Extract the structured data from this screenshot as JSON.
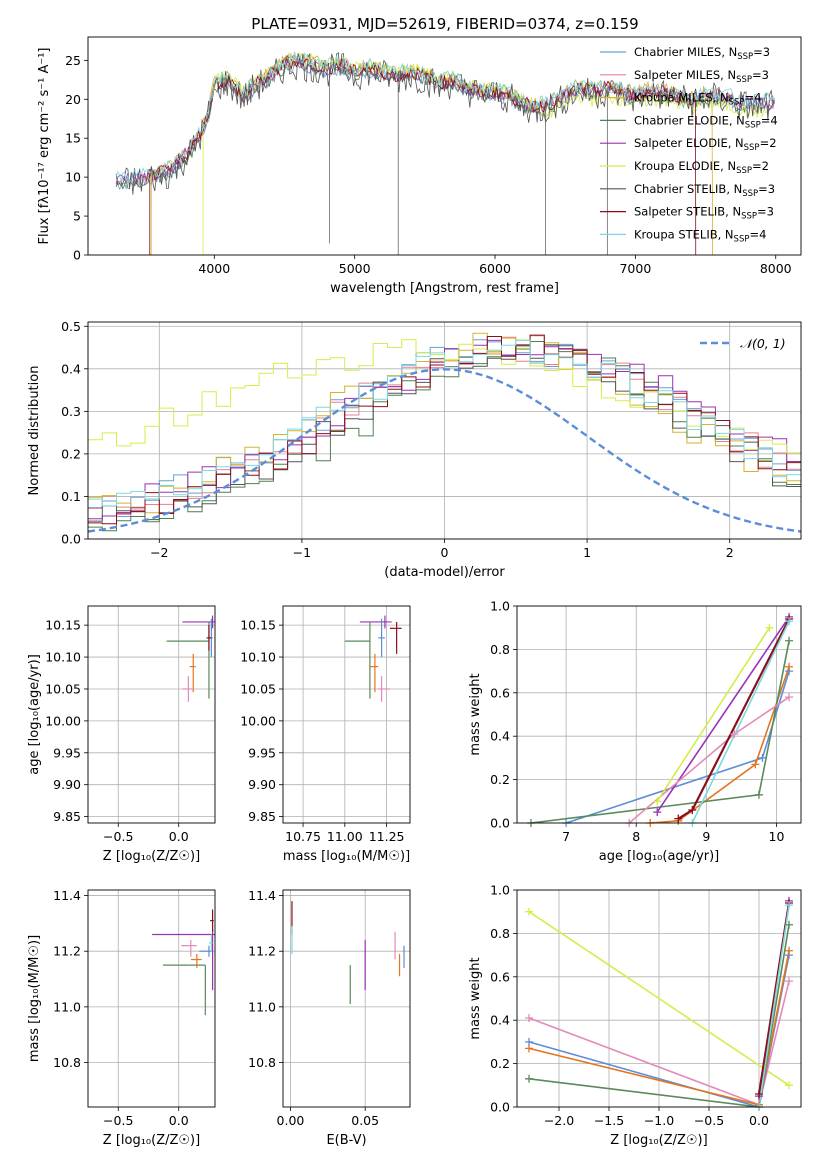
{
  "figure_title": "PLATE=0931, MJD=52619, FIBERID=0374, z=0.159",
  "colors": {
    "chabrier_miles": "#6a9fd4",
    "salpeter_miles": "#e58090",
    "kroupa_miles": "#d5b32b",
    "chabrier_elodie": "#4f7f4f",
    "salpeter_elodie": "#9b31b5",
    "kroupa_elodie": "#d7ec4a",
    "chabrier_stelib": "#555555",
    "salpeter_stelib": "#8b0f1a",
    "kroupa_stelib": "#7ed8e0",
    "mw_blue": "#5b8dd9",
    "mw_orange": "#e6741c",
    "mw_green": "#5a8a5a",
    "mw_purple": "#9b31b5",
    "mw_pink": "#e58ab8",
    "mw_yellow": "#d7ec4a",
    "mw_red": "#8b0f1a",
    "mw_cyan": "#7ed8e0",
    "gaussian": "#5b8dd9",
    "grid": "#b0b0b0"
  },
  "chart_data": [
    {
      "id": "spectrum",
      "type": "line",
      "xlabel": "wavelength [Angstrom, rest frame]",
      "ylabel": "Flux [f$_\\lambda$10$^{-17}$ erg cm$^{-2}$ s$^{-1}$ A$^{-1}$]",
      "ylabel_display": "Flux [fλ10⁻¹⁷ erg cm⁻² s⁻¹ A⁻¹]",
      "xlim": [
        3100,
        8180
      ],
      "ylim": [
        0,
        28
      ],
      "xticks": [
        4000,
        5000,
        6000,
        7000,
        8000
      ],
      "yticks": [
        0,
        5,
        10,
        15,
        20,
        25
      ],
      "grid": false,
      "legend_position": "top-right",
      "legend": [
        {
          "label": "Chabrier MILES, N",
          "sub": "SSP",
          "tail": "=3",
          "color_key": "chabrier_miles"
        },
        {
          "label": "Salpeter MILES, N",
          "sub": "SSP",
          "tail": "=3",
          "color_key": "salpeter_miles"
        },
        {
          "label": "Kroupa MILES, N",
          "sub": "SSP",
          "tail": "=4",
          "color_key": "kroupa_miles"
        },
        {
          "label": "Chabrier ELODIE, N",
          "sub": "SSP",
          "tail": "=4",
          "color_key": "chabrier_elodie"
        },
        {
          "label": "Salpeter ELODIE, N",
          "sub": "SSP",
          "tail": "=2",
          "color_key": "salpeter_elodie"
        },
        {
          "label": "Kroupa ELODIE, N",
          "sub": "SSP",
          "tail": "=2",
          "color_key": "kroupa_elodie"
        },
        {
          "label": "Chabrier STELIB, N",
          "sub": "SSP",
          "tail": "=3",
          "color_key": "chabrier_stelib"
        },
        {
          "label": "Salpeter STELIB, N",
          "sub": "SSP",
          "tail": "=3",
          "color_key": "salpeter_stelib"
        },
        {
          "label": "Kroupa STELIB, N",
          "sub": "SSP",
          "tail": "=4",
          "color_key": "kroupa_stelib"
        }
      ],
      "envelope": {
        "x": [
          3300,
          3500,
          3700,
          3850,
          3950,
          4000,
          4100,
          4200,
          4300,
          4400,
          4500,
          4600,
          4700,
          4800,
          4900,
          5000,
          5100,
          5200,
          5300,
          5400,
          5500,
          5600,
          5700,
          5800,
          5900,
          6000,
          6100,
          6200,
          6300,
          6400,
          6500,
          6600,
          6700,
          6800,
          6900,
          7000,
          7100,
          7200,
          7300,
          7400,
          7500,
          7600,
          7700,
          7800,
          7900,
          8000
        ],
        "y": [
          9.5,
          10.0,
          11.0,
          14.0,
          17.5,
          22.0,
          22.5,
          20.5,
          22.0,
          23.0,
          24.5,
          25.0,
          24.5,
          24.0,
          24.5,
          23.5,
          24.0,
          23.5,
          23.0,
          23.5,
          23.0,
          22.0,
          22.5,
          21.5,
          21.0,
          21.0,
          20.5,
          19.5,
          19.0,
          19.5,
          20.5,
          21.5,
          21.0,
          21.5,
          21.0,
          20.5,
          21.0,
          21.0,
          20.5,
          20.0,
          20.5,
          20.5,
          20.0,
          19.5,
          19.5,
          19.5
        ]
      }
    },
    {
      "id": "residuals",
      "type": "area",
      "xlabel": "(data-model)/error",
      "ylabel": "Normed distribution",
      "xlim": [
        -2.5,
        2.5
      ],
      "ylim": [
        0,
        0.51
      ],
      "xticks": [
        -2,
        -1,
        0,
        1,
        2
      ],
      "yticks": [
        0.0,
        0.1,
        0.2,
        0.3,
        0.4,
        0.5
      ],
      "grid": true,
      "legend_position": "top-right",
      "legend": [
        {
          "label": "𝒩(0, 1)",
          "color_key": "gaussian"
        }
      ],
      "gaussian": {
        "mu": 0,
        "sigma": 1
      }
    },
    {
      "id": "age_vs_z",
      "type": "scatter",
      "xlabel": "Z [log₁₀(Z/Z☉)]",
      "ylabel": "age  [log₁₀(age/yr)]",
      "xlim": [
        -0.75,
        0.3
      ],
      "ylim": [
        9.84,
        10.18
      ],
      "xticks": [
        -0.5,
        0.0
      ],
      "yticks": [
        9.85,
        9.9,
        9.95,
        10.0,
        10.05,
        10.1,
        10.15
      ],
      "grid": true,
      "points": [
        {
          "x": 0.28,
          "y": 10.155,
          "xerr": [
            0.25,
            0.02
          ],
          "yerr": [
            0.01,
            0.01
          ],
          "color_key": "mw_purple"
        },
        {
          "x": 0.25,
          "y": 10.125,
          "xerr": [
            0.35,
            0.0
          ],
          "yerr": [
            0.09,
            0.03
          ],
          "color_key": "mw_green"
        },
        {
          "x": 0.27,
          "y": 10.13,
          "xerr": [
            0.02,
            0.01
          ],
          "yerr": [
            0.03,
            0.03
          ],
          "color_key": "mw_blue"
        },
        {
          "x": 0.12,
          "y": 10.085,
          "xerr": [
            0.03,
            0.02
          ],
          "yerr": [
            0.04,
            0.02
          ],
          "color_key": "mw_orange"
        },
        {
          "x": 0.08,
          "y": 10.05,
          "xerr": [
            0.05,
            0.05
          ],
          "yerr": [
            0.02,
            0.02
          ],
          "color_key": "mw_pink"
        },
        {
          "x": 0.25,
          "y": 10.13,
          "xerr": [
            0.02,
            0.02
          ],
          "yerr": [
            0.02,
            0.02
          ],
          "color_key": "mw_red"
        }
      ]
    },
    {
      "id": "age_vs_mass",
      "type": "scatter",
      "xlabel": "mass [log₁₀(M/M☉)]",
      "ylabel": "",
      "xlim": [
        10.63,
        11.39
      ],
      "ylim": [
        9.84,
        10.18
      ],
      "xticks": [
        10.75,
        11.0,
        11.25
      ],
      "yticks": [
        9.85,
        9.9,
        9.95,
        10.0,
        10.05,
        10.1,
        10.15
      ],
      "grid": true,
      "points": [
        {
          "x": 11.24,
          "y": 10.155,
          "xerr": [
            0.15,
            0.04
          ],
          "yerr": [
            0.01,
            0.01
          ],
          "color_key": "mw_purple"
        },
        {
          "x": 11.15,
          "y": 10.125,
          "xerr": [
            0.15,
            0.0
          ],
          "yerr": [
            0.09,
            0.03
          ],
          "color_key": "mw_green"
        },
        {
          "x": 11.22,
          "y": 10.13,
          "xerr": [
            0.02,
            0.02
          ],
          "yerr": [
            0.03,
            0.03
          ],
          "color_key": "mw_blue"
        },
        {
          "x": 11.18,
          "y": 10.085,
          "xerr": [
            0.03,
            0.02
          ],
          "yerr": [
            0.04,
            0.02
          ],
          "color_key": "mw_orange"
        },
        {
          "x": 11.22,
          "y": 10.05,
          "xerr": [
            0.02,
            0.05
          ],
          "yerr": [
            0.02,
            0.02
          ],
          "color_key": "mw_pink"
        },
        {
          "x": 11.31,
          "y": 10.145,
          "xerr": [
            0.04,
            0.03
          ],
          "yerr": [
            0.04,
            0.01
          ],
          "color_key": "mw_red"
        }
      ]
    },
    {
      "id": "mass_weight_vs_age",
      "type": "line",
      "xlabel": "age  [log₁₀(age/yr)]",
      "ylabel": "mass weight",
      "xlim": [
        6.3,
        10.35
      ],
      "ylim": [
        0,
        1
      ],
      "xticks": [
        7,
        8,
        9,
        10
      ],
      "yticks": [
        0.0,
        0.2,
        0.4,
        0.6,
        0.8,
        1.0
      ],
      "grid": true,
      "series": [
        {
          "color_key": "mw_blue",
          "x": [
            7.0,
            9.8,
            10.18
          ],
          "y": [
            0.0,
            0.3,
            0.7
          ]
        },
        {
          "color_key": "mw_orange",
          "x": [
            8.2,
            8.6,
            9.7,
            10.18
          ],
          "y": [
            0.0,
            0.01,
            0.27,
            0.72
          ]
        },
        {
          "color_key": "mw_green",
          "x": [
            6.5,
            9.75,
            10.18
          ],
          "y": [
            0.0,
            0.13,
            0.84
          ]
        },
        {
          "color_key": "mw_purple",
          "x": [
            8.3,
            10.18
          ],
          "y": [
            0.05,
            0.95
          ]
        },
        {
          "color_key": "mw_pink",
          "x": [
            7.9,
            9.4,
            10.18
          ],
          "y": [
            0.0,
            0.41,
            0.58
          ]
        },
        {
          "color_key": "mw_yellow",
          "x": [
            8.3,
            9.9
          ],
          "y": [
            0.1,
            0.9
          ]
        },
        {
          "color_key": "mw_red",
          "x": [
            8.6,
            8.8,
            10.18
          ],
          "y": [
            0.02,
            0.06,
            0.94
          ]
        },
        {
          "color_key": "mw_cyan",
          "x": [
            8.8,
            10.18
          ],
          "y": [
            0.0,
            0.93
          ]
        }
      ]
    },
    {
      "id": "mass_vs_z",
      "type": "scatter",
      "xlabel": "Z [log₁₀(Z/Z☉)]",
      "ylabel": "mass [log₁₀(M/M☉)]",
      "xlim": [
        -0.75,
        0.3
      ],
      "ylim": [
        10.64,
        11.42
      ],
      "xticks": [
        -0.5,
        0.0
      ],
      "yticks": [
        10.8,
        11.0,
        11.2,
        11.4
      ],
      "grid": true,
      "points": [
        {
          "x": 0.28,
          "y": 11.26,
          "xerr": [
            0.5,
            0.02
          ],
          "yerr": [
            0.2,
            0.02
          ],
          "color_key": "mw_purple"
        },
        {
          "x": 0.22,
          "y": 11.15,
          "xerr": [
            0.35,
            0.0
          ],
          "yerr": [
            0.18,
            0.0
          ],
          "color_key": "mw_green"
        },
        {
          "x": 0.25,
          "y": 11.2,
          "xerr": [
            0.08,
            0.02
          ],
          "yerr": [
            0.02,
            0.02
          ],
          "color_key": "mw_blue"
        },
        {
          "x": 0.15,
          "y": 11.17,
          "xerr": [
            0.05,
            0.04
          ],
          "yerr": [
            0.03,
            0.02
          ],
          "color_key": "mw_orange"
        },
        {
          "x": 0.1,
          "y": 11.22,
          "xerr": [
            0.08,
            0.05
          ],
          "yerr": [
            0.04,
            0.02
          ],
          "color_key": "mw_pink"
        },
        {
          "x": 0.28,
          "y": 11.31,
          "xerr": [
            0.02,
            0.01
          ],
          "yerr": [
            0.04,
            0.04
          ],
          "color_key": "mw_red"
        },
        {
          "x": 0.27,
          "y": 11.23,
          "xerr": [
            0.02,
            0.01
          ],
          "yerr": [
            0.03,
            0.03
          ],
          "color_key": "mw_cyan"
        }
      ]
    },
    {
      "id": "mass_vs_ebv",
      "type": "scatter",
      "xlabel": "E(B-V)",
      "ylabel": "",
      "xlim": [
        -0.005,
        0.08
      ],
      "ylim": [
        10.64,
        11.42
      ],
      "xticks": [
        0.0,
        0.05
      ],
      "yticks": [
        10.8,
        11.0,
        11.2,
        11.4
      ],
      "grid": true,
      "points": [
        {
          "x": 0.001,
          "y": 11.32,
          "xerr": [
            0,
            0
          ],
          "yerr": [
            0.06,
            0.06
          ],
          "color_key": "mw_red"
        },
        {
          "x": 0.001,
          "y": 11.24,
          "xerr": [
            0,
            0
          ],
          "yerr": [
            0.05,
            0.05
          ],
          "color_key": "mw_cyan"
        },
        {
          "x": 0.04,
          "y": 11.08,
          "xerr": [
            0,
            0
          ],
          "yerr": [
            0.07,
            0.07
          ],
          "color_key": "mw_green"
        },
        {
          "x": 0.05,
          "y": 11.15,
          "xerr": [
            0,
            0
          ],
          "yerr": [
            0.09,
            0.09
          ],
          "color_key": "mw_purple"
        },
        {
          "x": 0.07,
          "y": 11.22,
          "xerr": [
            0,
            0
          ],
          "yerr": [
            0.05,
            0.05
          ],
          "color_key": "mw_pink"
        },
        {
          "x": 0.073,
          "y": 11.15,
          "xerr": [
            0,
            0
          ],
          "yerr": [
            0.04,
            0.04
          ],
          "color_key": "mw_orange"
        },
        {
          "x": 0.076,
          "y": 11.18,
          "xerr": [
            0,
            0
          ],
          "yerr": [
            0.04,
            0.04
          ],
          "color_key": "mw_blue"
        }
      ]
    },
    {
      "id": "mass_weight_vs_z",
      "type": "line",
      "xlabel": "Z [log₁₀(Z/Z☉)]",
      "ylabel": "mass weight",
      "xlim": [
        -2.42,
        0.42
      ],
      "ylim": [
        0,
        1
      ],
      "xticks": [
        -2.0,
        -1.5,
        -1.0,
        -0.5,
        0.0
      ],
      "yticks": [
        0.0,
        0.2,
        0.4,
        0.6,
        0.8,
        1.0
      ],
      "grid": true,
      "series": [
        {
          "color_key": "mw_yellow",
          "x": [
            -2.3,
            0.3
          ],
          "y": [
            0.9,
            0.1
          ]
        },
        {
          "color_key": "mw_pink",
          "x": [
            -2.3,
            0.0,
            0.3
          ],
          "y": [
            0.41,
            0.01,
            0.58
          ]
        },
        {
          "color_key": "mw_blue",
          "x": [
            -2.3,
            0.0,
            0.3
          ],
          "y": [
            0.3,
            0.0,
            0.7
          ]
        },
        {
          "color_key": "mw_orange",
          "x": [
            -2.3,
            0.0,
            0.3
          ],
          "y": [
            0.27,
            0.01,
            0.72
          ]
        },
        {
          "color_key": "mw_green",
          "x": [
            -2.3,
            0.0,
            0.3
          ],
          "y": [
            0.13,
            0.0,
            0.84
          ]
        },
        {
          "color_key": "mw_purple",
          "x": [
            0.0,
            0.3
          ],
          "y": [
            0.05,
            0.95
          ]
        },
        {
          "color_key": "mw_red",
          "x": [
            0.0,
            0.3
          ],
          "y": [
            0.06,
            0.94
          ]
        },
        {
          "color_key": "mw_cyan",
          "x": [
            0.0,
            0.3
          ],
          "y": [
            0.0,
            0.93
          ]
        }
      ]
    }
  ]
}
